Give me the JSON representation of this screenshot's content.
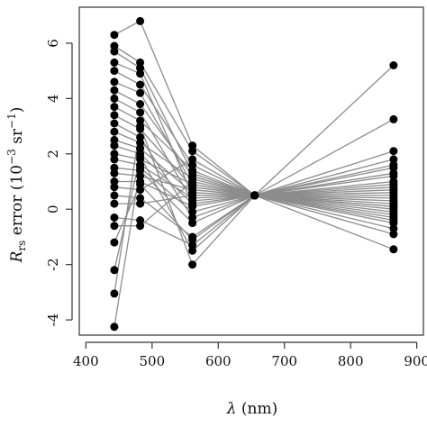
{
  "chart_data": {
    "type": "line",
    "x": [
      443,
      482,
      561,
      655,
      865
    ],
    "xlabel_prefix": "λ",
    "xlabel_suffix": " (nm)",
    "ylabel_sym": "R",
    "ylabel_sub": "rs",
    "ylabel_mid": " error (10",
    "ylabel_exp1": "−3",
    "ylabel_unit": " sr",
    "ylabel_exp2": "−1",
    "ylabel_end": ")",
    "xlim": [
      390,
      910
    ],
    "ylim": [
      -4.55,
      7.3
    ],
    "xticks": [
      "400",
      "500",
      "600",
      "700",
      "800",
      "900"
    ],
    "yticks": [
      "-4",
      "-2",
      "0",
      "2",
      "4",
      "6"
    ],
    "grid": false,
    "colors": {
      "lines": "#8c8c8c",
      "points": "#000000",
      "axes": "#333333"
    },
    "series": [
      {
        "values": [
          6.3,
          6.8,
          2.3,
          0.5,
          5.2
        ]
      },
      {
        "values": [
          5.9,
          5.3,
          2.1,
          0.5,
          3.25
        ]
      },
      {
        "values": [
          5.7,
          5.1,
          1.3,
          0.5,
          2.1
        ]
      },
      {
        "values": [
          5.3,
          4.9,
          0.5,
          0.5,
          1.8
        ]
      },
      {
        "values": [
          5.0,
          4.5,
          1.6,
          0.5,
          1.5
        ]
      },
      {
        "values": [
          4.6,
          4.2,
          0.9,
          0.5,
          1.2
        ]
      },
      {
        "values": [
          4.3,
          3.8,
          1.2,
          0.5,
          1.0
        ]
      },
      {
        "values": [
          4.0,
          3.5,
          0.3,
          0.5,
          0.9
        ]
      },
      {
        "values": [
          3.7,
          3.2,
          1.4,
          0.5,
          0.7
        ]
      },
      {
        "values": [
          3.4,
          2.9,
          0.8,
          0.5,
          1.6
        ]
      },
      {
        "values": [
          3.1,
          2.6,
          -0.3,
          0.5,
          0.5
        ]
      },
      {
        "values": [
          2.8,
          2.4,
          1.1,
          0.5,
          0.3
        ]
      },
      {
        "values": [
          2.5,
          2.2,
          0.6,
          0.5,
          0.4
        ]
      },
      {
        "values": [
          2.3,
          2.0,
          0.2,
          0.5,
          0.1
        ]
      },
      {
        "values": [
          2.0,
          1.8,
          0.9,
          0.5,
          -0.1
        ]
      },
      {
        "values": [
          1.8,
          1.6,
          0.4,
          0.5,
          0.8
        ]
      },
      {
        "values": [
          1.5,
          1.4,
          -0.5,
          0.5,
          0.2
        ]
      },
      {
        "values": [
          1.3,
          1.2,
          0.7,
          0.5,
          -0.3
        ]
      },
      {
        "values": [
          1.0,
          1.0,
          0.1,
          0.5,
          0.6
        ]
      },
      {
        "values": [
          0.8,
          0.7,
          1.8,
          0.5,
          1.3
        ]
      },
      {
        "values": [
          0.5,
          0.4,
          -1.0,
          0.5,
          -0.5
        ]
      },
      {
        "values": [
          0.2,
          0.2,
          0.5,
          0.5,
          0.0
        ]
      },
      {
        "values": [
          -0.3,
          -0.4,
          -1.3,
          0.5,
          -0.7
        ]
      },
      {
        "values": [
          -0.6,
          -0.6,
          1.0,
          0.5,
          -0.9
        ]
      },
      {
        "values": [
          -1.2,
          0.9,
          -1.1,
          0.5,
          -1.45
        ]
      },
      {
        "values": [
          -2.2,
          1.9,
          -1.5,
          0.5,
          -0.4
        ]
      },
      {
        "values": [
          -3.05,
          3.0,
          -2.0,
          0.5,
          0.1
        ]
      },
      {
        "values": [
          -4.25,
          1.5,
          -0.1,
          0.5,
          -0.2
        ]
      }
    ]
  }
}
